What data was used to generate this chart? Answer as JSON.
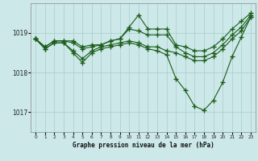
{
  "title": "Graphe pression niveau de la mer (hPa)",
  "background_color": "#cce8e8",
  "grid_color": "#aacccc",
  "line_color": "#1a5c1a",
  "marker": "+",
  "markersize": 4,
  "linewidth": 0.8,
  "xlim": [
    -0.5,
    23.5
  ],
  "ylim": [
    1016.5,
    1019.75
  ],
  "yticks": [
    1017,
    1018,
    1019
  ],
  "xticks": [
    0,
    1,
    2,
    3,
    4,
    5,
    6,
    7,
    8,
    9,
    10,
    11,
    12,
    13,
    14,
    15,
    16,
    17,
    18,
    19,
    20,
    21,
    22,
    23
  ],
  "series": [
    {
      "x": [
        0,
        1,
        2,
        3,
        4,
        5,
        6,
        7,
        8,
        9,
        10,
        11,
        12,
        13,
        14,
        15,
        16,
        17,
        18,
        19,
        20,
        21,
        22,
        23
      ],
      "y": [
        1018.85,
        1018.65,
        1018.8,
        1018.8,
        1018.8,
        1018.65,
        1018.7,
        1018.7,
        1018.8,
        1018.85,
        1019.15,
        1019.45,
        1019.1,
        1019.1,
        1019.1,
        1018.7,
        1018.65,
        1018.55,
        1018.55,
        1018.65,
        1018.85,
        1019.1,
        1019.3,
        1019.5
      ]
    },
    {
      "x": [
        0,
        1,
        2,
        3,
        4,
        5,
        6,
        7,
        8,
        9,
        10,
        11,
        12,
        13,
        14,
        15,
        16,
        17,
        18,
        19,
        20,
        21,
        22,
        23
      ],
      "y": [
        1018.85,
        1018.65,
        1018.8,
        1018.8,
        1018.75,
        1018.6,
        1018.65,
        1018.7,
        1018.8,
        1018.85,
        1019.1,
        1019.05,
        1018.95,
        1018.95,
        1018.95,
        1018.65,
        1018.5,
        1018.4,
        1018.4,
        1018.5,
        1018.7,
        1018.95,
        1019.15,
        1019.45
      ]
    },
    {
      "x": [
        0,
        1,
        2,
        3,
        4,
        5,
        6,
        7,
        8,
        9,
        10,
        11,
        12,
        13,
        14,
        15,
        16,
        17,
        18,
        19,
        20,
        21,
        22,
        23
      ],
      "y": [
        1018.85,
        1018.6,
        1018.75,
        1018.75,
        1018.55,
        1018.35,
        1018.55,
        1018.65,
        1018.7,
        1018.75,
        1018.8,
        1018.75,
        1018.65,
        1018.65,
        1018.55,
        1018.5,
        1018.4,
        1018.3,
        1018.3,
        1018.4,
        1018.6,
        1018.85,
        1019.05,
        1019.4
      ]
    },
    {
      "x": [
        0,
        1,
        2,
        3,
        4,
        5,
        6,
        7,
        8,
        9,
        10,
        11,
        12,
        13,
        14,
        15,
        16,
        17,
        18,
        19,
        20,
        21,
        22,
        23
      ],
      "y": [
        1018.85,
        1018.6,
        1018.75,
        1018.75,
        1018.5,
        1018.25,
        1018.5,
        1018.6,
        1018.65,
        1018.7,
        1018.75,
        1018.7,
        1018.6,
        1018.55,
        1018.45,
        1017.85,
        1017.55,
        1017.15,
        1017.05,
        1017.3,
        1017.75,
        1018.4,
        1018.9,
        1019.4
      ]
    }
  ]
}
